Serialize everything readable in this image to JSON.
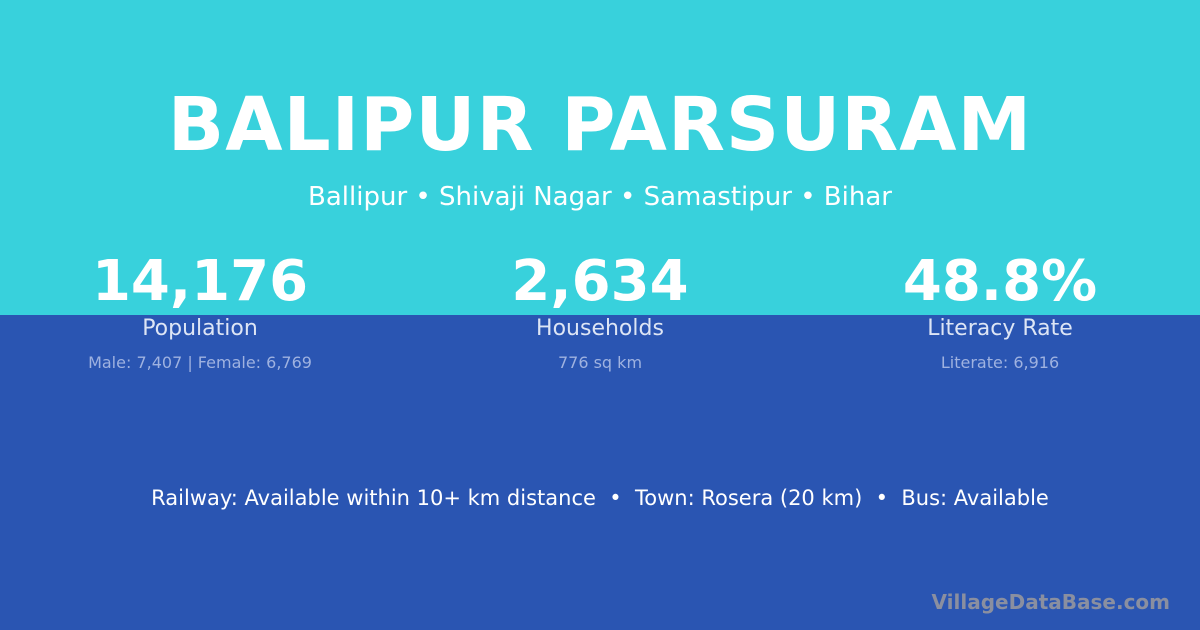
{
  "colors": {
    "top_band": "#38D1DC",
    "bottom_band": "#2A55B2"
  },
  "title": "BALIPUR PARSURAM",
  "subtitle": "Ballipur • Shivaji Nagar • Samastipur • Bihar",
  "stats": [
    {
      "value": "14,176",
      "label": "Population",
      "sub": "Male: 7,407 | Female: 6,769"
    },
    {
      "value": "2,634",
      "label": "Households",
      "sub": "776 sq km"
    },
    {
      "value": "48.8%",
      "label": "Literacy Rate",
      "sub": "Literate: 6,916"
    }
  ],
  "info": "Railway: Available within 10+ km distance  •  Town: Rosera (20 km)  •  Bus: Available",
  "watermark": "VillageDataBase.com"
}
